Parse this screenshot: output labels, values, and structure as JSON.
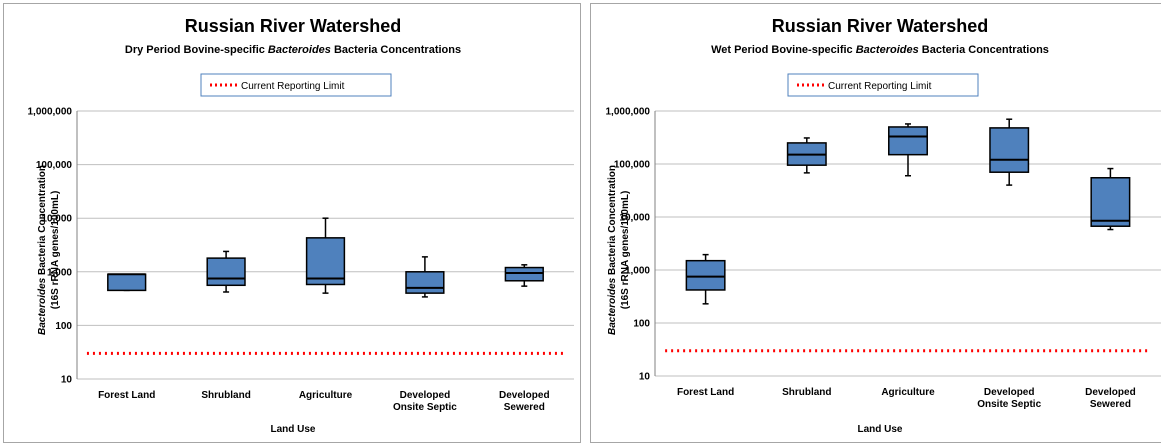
{
  "chart_data": [
    {
      "type": "boxplot",
      "title": "Russian River Watershed",
      "subtitle_prefix": "Dry Period  Bovine-specific ",
      "subtitle_italic": "Bacteroides",
      "subtitle_suffix": " Bacteria Concentrations",
      "legend": "Current Reporting Limit",
      "xlabel": "Land Use",
      "ylabel_italic": "Bacteroides",
      "ylabel_rest": " Bacteria Concentration",
      "ylabel_line2": "(16S rRNA genes/100mL)",
      "y_scale": "log",
      "ylim": [
        10,
        1000000
      ],
      "y_ticks": [
        "10",
        "100",
        "1,000",
        "10,000",
        "100,000",
        "1,000,000"
      ],
      "categories": [
        [
          "Forest Land"
        ],
        [
          "Shrubland"
        ],
        [
          "Agriculture"
        ],
        [
          "Developed",
          "Onsite Septic"
        ],
        [
          "Developed",
          "Sewered"
        ]
      ],
      "boxes": [
        {
          "min": 450,
          "q1": 450,
          "median": 900,
          "q3": 900,
          "max": 900
        },
        {
          "min": 420,
          "q1": 560,
          "median": 750,
          "q3": 1800,
          "max": 2400
        },
        {
          "min": 400,
          "q1": 580,
          "median": 750,
          "q3": 4300,
          "max": 10000
        },
        {
          "min": 340,
          "q1": 400,
          "median": 500,
          "q3": 1000,
          "max": 1900
        },
        {
          "min": 540,
          "q1": 680,
          "median": 950,
          "q3": 1200,
          "max": 1350
        }
      ],
      "reporting_limit": 30,
      "colors": {
        "box": "#4f81bd",
        "box_edge": "#000000",
        "limit": "#ff0000"
      }
    },
    {
      "type": "boxplot",
      "title": "Russian River Watershed",
      "subtitle_prefix": "Wet Period  Bovine-specific ",
      "subtitle_italic": "Bacteroides",
      "subtitle_suffix": " Bacteria Concentrations",
      "legend": "Current Reporting Limit",
      "xlabel": "Land Use",
      "ylabel_italic": "Bacteroides",
      "ylabel_rest": " Bacteria Concentration",
      "ylabel_line2": "(16S rRNA genes/100mL)",
      "y_scale": "log",
      "ylim": [
        10,
        1000000
      ],
      "y_ticks": [
        "10",
        "100",
        "1,000",
        "10,000",
        "100,000",
        "1,000,000"
      ],
      "categories": [
        [
          "Forest Land"
        ],
        [
          "Shrubland"
        ],
        [
          "Agriculture"
        ],
        [
          "Developed",
          "Onsite Septic"
        ],
        [
          "Developed",
          "Sewered"
        ]
      ],
      "boxes": [
        {
          "min": 230,
          "q1": 420,
          "median": 750,
          "q3": 1500,
          "max": 1950
        },
        {
          "min": 68000,
          "q1": 95000,
          "median": 150000,
          "q3": 250000,
          "max": 310000
        },
        {
          "min": 60000,
          "q1": 150000,
          "median": 330000,
          "q3": 500000,
          "max": 570000
        },
        {
          "min": 40000,
          "q1": 70000,
          "median": 120000,
          "q3": 480000,
          "max": 700000
        },
        {
          "min": 5800,
          "q1": 6700,
          "median": 8500,
          "q3": 55000,
          "max": 82000
        }
      ],
      "reporting_limit": 30,
      "colors": {
        "box": "#4f81bd",
        "box_edge": "#000000",
        "limit": "#ff0000"
      }
    }
  ]
}
